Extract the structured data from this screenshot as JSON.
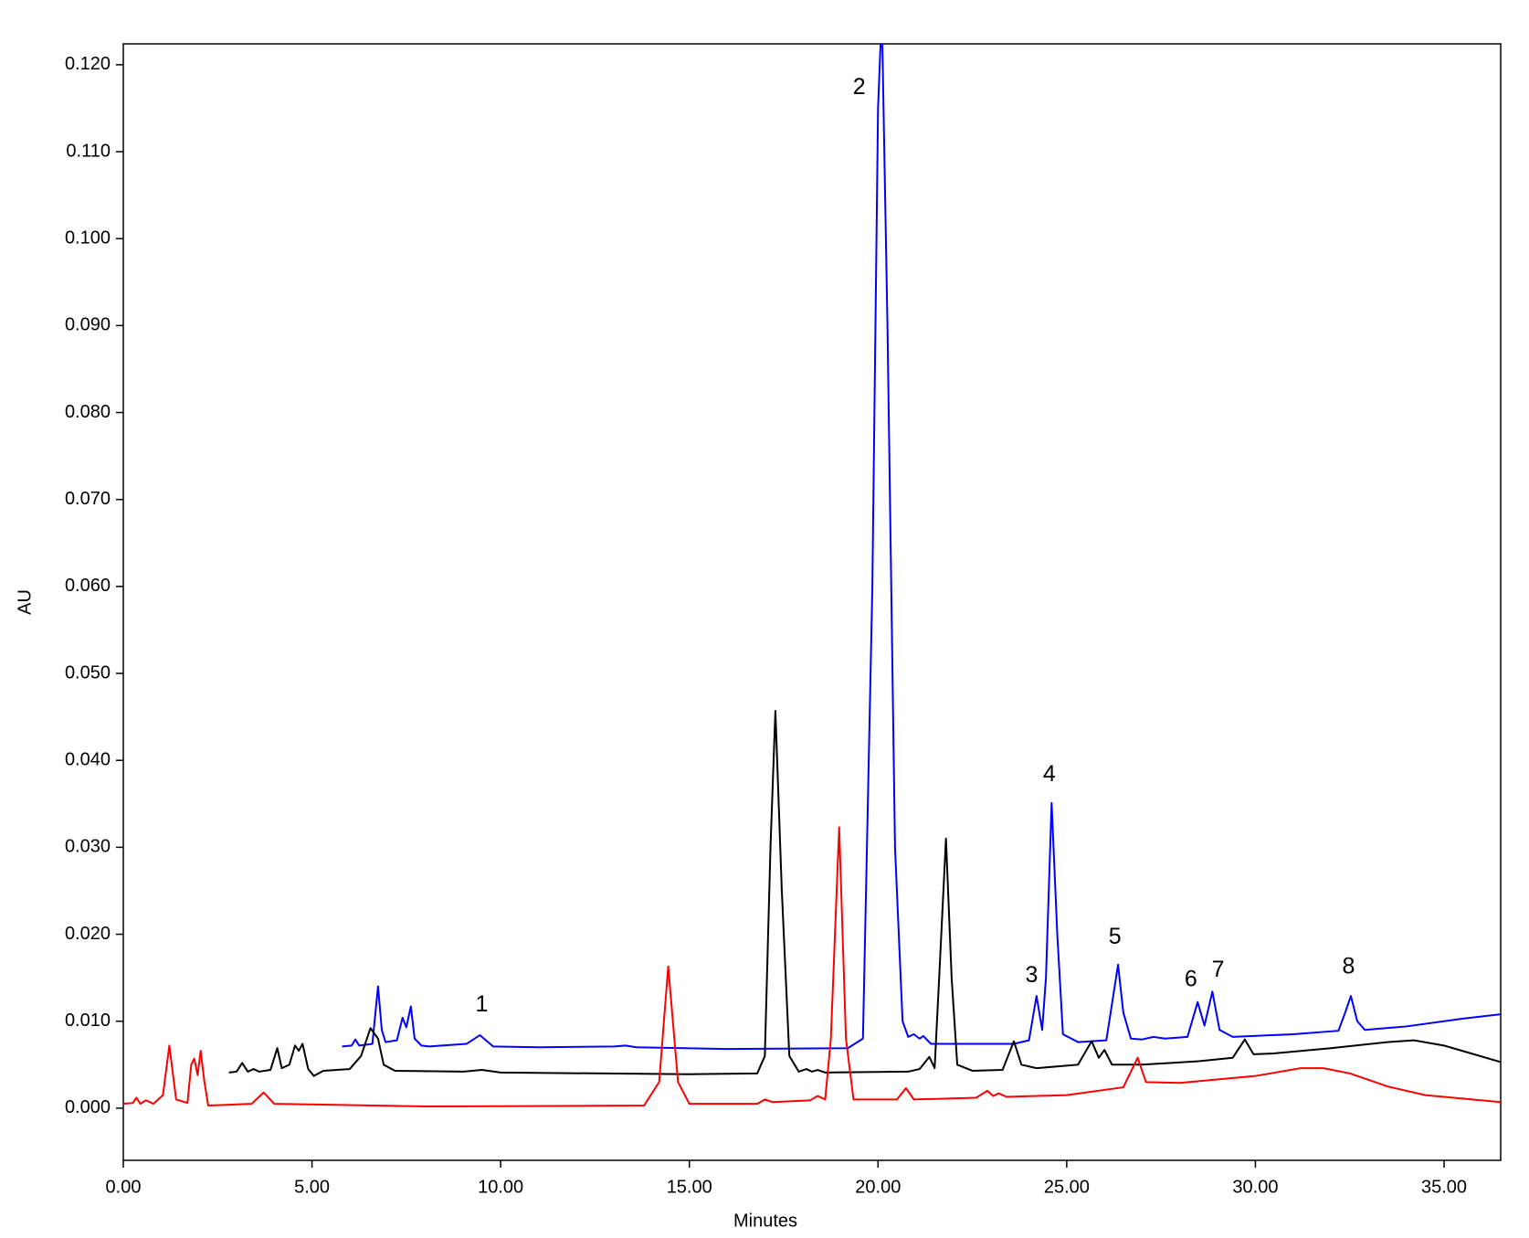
{
  "chart_data": {
    "type": "line",
    "xlabel": "Minutes",
    "ylabel": "AU",
    "xlim": [
      0,
      36.5
    ],
    "ylim": [
      -0.006,
      0.1224
    ],
    "xticks": [
      {
        "value": 0,
        "label": "0.00"
      },
      {
        "value": 5,
        "label": "5.00"
      },
      {
        "value": 10,
        "label": "10.00"
      },
      {
        "value": 15,
        "label": "15.00"
      },
      {
        "value": 20,
        "label": "20.00"
      },
      {
        "value": 25,
        "label": "25.00"
      },
      {
        "value": 30,
        "label": "30.00"
      },
      {
        "value": 35,
        "label": "35.00"
      }
    ],
    "yticks": [
      {
        "value": 0,
        "label": "0.000"
      },
      {
        "value": 0.01,
        "label": "0.010"
      },
      {
        "value": 0.02,
        "label": "0.020"
      },
      {
        "value": 0.03,
        "label": "0.030"
      },
      {
        "value": 0.04,
        "label": "0.040"
      },
      {
        "value": 0.05,
        "label": "0.050"
      },
      {
        "value": 0.06,
        "label": "0.060"
      },
      {
        "value": 0.07,
        "label": "0.070"
      },
      {
        "value": 0.08,
        "label": "0.080"
      },
      {
        "value": 0.09,
        "label": "0.090"
      },
      {
        "value": 0.1,
        "label": "0.100"
      },
      {
        "value": 0.11,
        "label": "0.110"
      },
      {
        "value": 0.12,
        "label": "0.120"
      }
    ],
    "series": [
      {
        "color": "#0000ff",
        "x": [
          5.8,
          6.05,
          6.15,
          6.25,
          6.45,
          6.6,
          6.75,
          6.85,
          6.95,
          7.25,
          7.4,
          7.5,
          7.62,
          7.72,
          7.9,
          8.1,
          9.1,
          9.45,
          9.8,
          11,
          13.0,
          13.3,
          13.6,
          16,
          19.2,
          19.6,
          19.85,
          20.0,
          20.1,
          20.25,
          20.45,
          20.65,
          20.8,
          20.95,
          21.1,
          21.2,
          21.4,
          23.6,
          24.0,
          24.2,
          24.35,
          24.45,
          24.6,
          24.75,
          24.9,
          25.3,
          26.05,
          26.2,
          26.36,
          26.5,
          26.7,
          27.0,
          27.3,
          27.6,
          28.2,
          28.47,
          28.65,
          28.86,
          29.05,
          29.4,
          31.0,
          32.2,
          32.38,
          32.53,
          32.7,
          32.9,
          34,
          35.5,
          36.5
        ],
        "values": [
          0.0071,
          0.0072,
          0.0079,
          0.0072,
          0.0073,
          0.0074,
          0.014,
          0.009,
          0.0076,
          0.0078,
          0.0104,
          0.0093,
          0.0117,
          0.008,
          0.0072,
          0.0071,
          0.0074,
          0.0084,
          0.0071,
          0.007,
          0.0071,
          0.0072,
          0.007,
          0.0068,
          0.0069,
          0.008,
          0.06,
          0.115,
          0.126,
          0.09,
          0.03,
          0.01,
          0.0082,
          0.0085,
          0.008,
          0.0083,
          0.0074,
          0.0074,
          0.0078,
          0.0129,
          0.009,
          0.015,
          0.0351,
          0.02,
          0.0085,
          0.0076,
          0.0078,
          0.012,
          0.0165,
          0.011,
          0.008,
          0.0079,
          0.0082,
          0.008,
          0.0082,
          0.0122,
          0.0095,
          0.0134,
          0.009,
          0.0082,
          0.0085,
          0.0089,
          0.011,
          0.0129,
          0.01,
          0.009,
          0.0094,
          0.0103,
          0.0108
        ]
      },
      {
        "color": "#000000",
        "x": [
          2.8,
          3.0,
          3.15,
          3.3,
          3.45,
          3.6,
          3.9,
          4.08,
          4.2,
          4.4,
          4.55,
          4.65,
          4.75,
          4.9,
          5.05,
          5.3,
          6.0,
          6.3,
          6.55,
          6.75,
          6.9,
          7.2,
          9,
          9.5,
          10,
          15,
          16.8,
          17.0,
          17.15,
          17.28,
          17.45,
          17.65,
          17.9,
          18.1,
          18.25,
          18.4,
          18.6,
          20.8,
          21.1,
          21.36,
          21.5,
          21.62,
          21.8,
          21.95,
          22.1,
          22.5,
          23.3,
          23.6,
          23.8,
          24.2,
          25.3,
          25.66,
          25.85,
          26.0,
          26.2,
          27,
          28.5,
          29.4,
          29.72,
          29.95,
          30.5,
          32,
          33.5,
          34.2,
          35,
          36.5
        ],
        "values": [
          0.0041,
          0.0042,
          0.0052,
          0.0042,
          0.0045,
          0.0042,
          0.0044,
          0.0069,
          0.0046,
          0.005,
          0.0072,
          0.0066,
          0.0074,
          0.0045,
          0.0037,
          0.0043,
          0.0045,
          0.006,
          0.0092,
          0.008,
          0.005,
          0.0043,
          0.0042,
          0.0044,
          0.0041,
          0.0039,
          0.004,
          0.006,
          0.03,
          0.0457,
          0.025,
          0.006,
          0.0042,
          0.0045,
          0.0042,
          0.0044,
          0.0041,
          0.0042,
          0.0045,
          0.0059,
          0.0046,
          0.015,
          0.031,
          0.015,
          0.005,
          0.0043,
          0.0044,
          0.0077,
          0.005,
          0.0046,
          0.005,
          0.0077,
          0.0058,
          0.0067,
          0.005,
          0.005,
          0.0054,
          0.0058,
          0.0079,
          0.0062,
          0.0063,
          0.0069,
          0.0076,
          0.0078,
          0.0072,
          0.0053
        ]
      },
      {
        "color": "#ff0000",
        "x": [
          0,
          0.25,
          0.35,
          0.45,
          0.6,
          0.8,
          1.05,
          1.22,
          1.4,
          1.7,
          1.8,
          1.88,
          1.97,
          2.05,
          2.15,
          2.25,
          3.4,
          3.72,
          4.0,
          8,
          13.8,
          14.2,
          14.44,
          14.7,
          15.0,
          16.8,
          17.0,
          17.2,
          18.2,
          18.4,
          18.6,
          18.75,
          18.97,
          19.15,
          19.35,
          20.5,
          20.74,
          20.95,
          22.6,
          22.9,
          23.05,
          23.2,
          23.4,
          25,
          26.5,
          26.88,
          27.1,
          28,
          30,
          31.2,
          31.8,
          32.5,
          33.5,
          34.5,
          36.5
        ],
        "values": [
          0.0005,
          0.0006,
          0.0012,
          0.0005,
          0.0009,
          0.0005,
          0.0015,
          0.0072,
          0.001,
          0.0006,
          0.005,
          0.0057,
          0.0038,
          0.0066,
          0.003,
          0.0003,
          0.0005,
          0.0018,
          0.0005,
          0.0002,
          0.0003,
          0.003,
          0.0163,
          0.003,
          0.0005,
          0.0005,
          0.001,
          0.0007,
          0.0009,
          0.0014,
          0.001,
          0.008,
          0.0323,
          0.008,
          0.001,
          0.001,
          0.0023,
          0.001,
          0.0012,
          0.002,
          0.0014,
          0.0017,
          0.0013,
          0.0015,
          0.0024,
          0.0058,
          0.003,
          0.0029,
          0.0037,
          0.0046,
          0.0046,
          0.004,
          0.0025,
          0.0015,
          0.0007
        ]
      }
    ],
    "annotations": [
      {
        "text": "1",
        "x": 9.5,
        "y": 0.0118
      },
      {
        "text": "2",
        "x": 19.5,
        "y": 0.1173
      },
      {
        "text": "3",
        "x": 24.07,
        "y": 0.0152
      },
      {
        "text": "4",
        "x": 24.54,
        "y": 0.0383
      },
      {
        "text": "5",
        "x": 26.28,
        "y": 0.0196
      },
      {
        "text": "6",
        "x": 28.29,
        "y": 0.0147
      },
      {
        "text": "7",
        "x": 29.01,
        "y": 0.0158
      },
      {
        "text": "8",
        "x": 32.47,
        "y": 0.0162
      }
    ]
  }
}
